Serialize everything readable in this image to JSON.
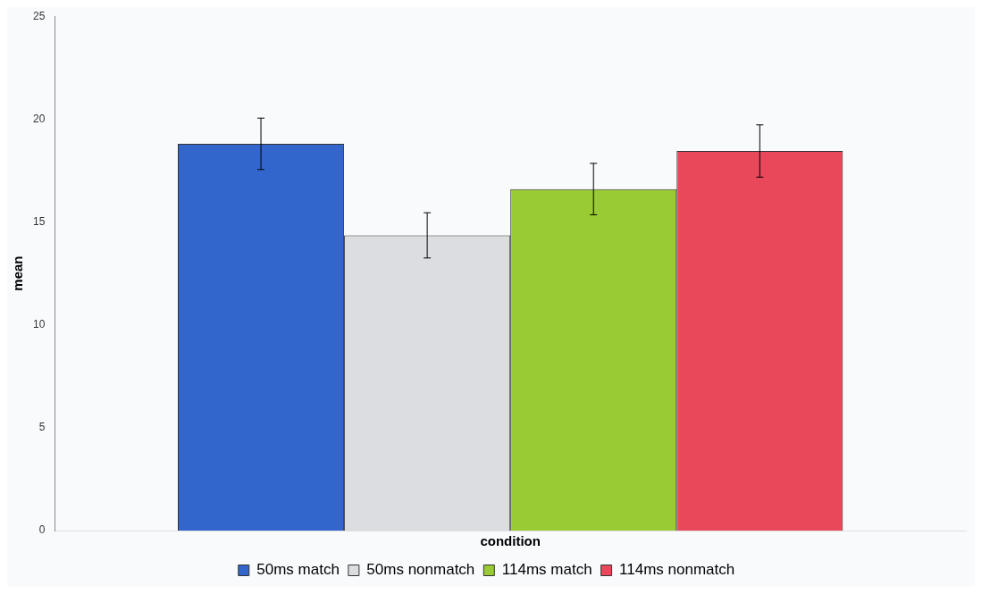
{
  "chart_data": {
    "type": "bar",
    "xlabel": "condition",
    "ylabel": "mean",
    "categories": [
      null
    ],
    "series": [
      {
        "name": "50ms match",
        "color": "#3366cc",
        "values": [
          18.8
        ],
        "errors": [
          1.25
        ]
      },
      {
        "name": "50ms nonmatch",
        "color": "#dcdde0",
        "values": [
          14.35
        ],
        "errors": [
          1.1
        ]
      },
      {
        "name": "114ms match",
        "color": "#99cc33",
        "values": [
          16.6
        ],
        "errors": [
          1.25
        ]
      },
      {
        "name": "114ms nonmatch",
        "color": "#e8485a",
        "values": [
          18.45
        ],
        "errors": [
          1.27
        ]
      }
    ],
    "ylim": [
      0,
      25
    ],
    "yticks": [
      0,
      5,
      10,
      15,
      20,
      25
    ],
    "grid": false,
    "legend": "bottom"
  }
}
